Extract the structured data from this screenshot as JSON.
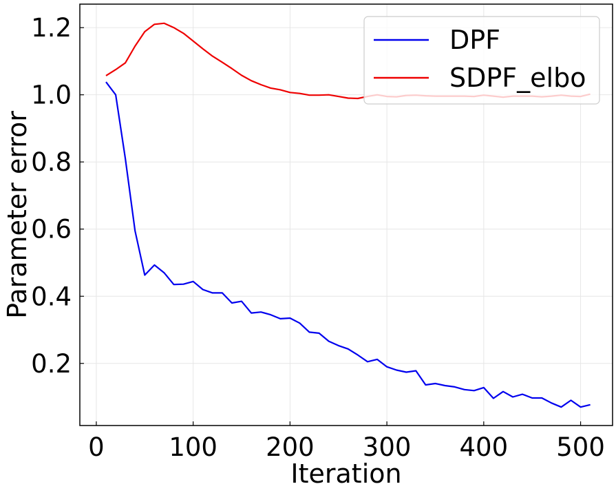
{
  "chart_data": {
    "type": "line",
    "title": "",
    "xlabel": "Iteration",
    "ylabel": "Parameter error",
    "xlim": [
      -17,
      533
    ],
    "ylim": [
      0.015,
      1.27
    ],
    "xticks": [
      0,
      100,
      200,
      300,
      400,
      500
    ],
    "xtick_labels": [
      "0",
      "100",
      "200",
      "300",
      "400",
      "500"
    ],
    "yticks": [
      0.2,
      0.4,
      0.6,
      0.8,
      1.0,
      1.2
    ],
    "ytick_labels": [
      "0.2",
      "0.4",
      "0.6",
      "0.8",
      "1.0",
      "1.2"
    ],
    "grid": true,
    "legend_position": "top-right",
    "x": [
      10,
      20,
      30,
      40,
      50,
      60,
      70,
      80,
      90,
      100,
      110,
      120,
      130,
      140,
      150,
      160,
      170,
      180,
      190,
      200,
      210,
      220,
      230,
      240,
      250,
      260,
      270,
      280,
      290,
      300,
      310,
      320,
      330,
      340,
      350,
      360,
      370,
      380,
      390,
      400,
      410,
      420,
      430,
      440,
      450,
      460,
      470,
      480,
      490,
      500,
      510
    ],
    "series": [
      {
        "name": "DPF",
        "color": "#0000ee",
        "values": [
          1.038,
          1.0,
          0.81,
          0.595,
          0.463,
          0.493,
          0.47,
          0.435,
          0.436,
          0.444,
          0.42,
          0.41,
          0.41,
          0.38,
          0.385,
          0.35,
          0.353,
          0.345,
          0.333,
          0.335,
          0.32,
          0.293,
          0.29,
          0.266,
          0.253,
          0.243,
          0.225,
          0.205,
          0.212,
          0.19,
          0.18,
          0.174,
          0.178,
          0.136,
          0.14,
          0.134,
          0.13,
          0.122,
          0.119,
          0.128,
          0.096,
          0.116,
          0.1,
          0.108,
          0.097,
          0.097,
          0.082,
          0.07,
          0.09,
          0.07,
          0.077
        ]
      },
      {
        "name": "SDPF_elbo",
        "color": "#ee0000",
        "values": [
          1.057,
          1.075,
          1.095,
          1.145,
          1.188,
          1.21,
          1.213,
          1.2,
          1.183,
          1.16,
          1.137,
          1.115,
          1.097,
          1.078,
          1.058,
          1.042,
          1.03,
          1.02,
          1.015,
          1.007,
          1.004,
          0.999,
          0.999,
          1.0,
          0.995,
          0.99,
          0.989,
          0.995,
          1.0,
          0.995,
          0.994,
          0.998,
          0.999,
          0.997,
          0.996,
          0.996,
          0.996,
          0.996,
          0.995,
          0.999,
          0.996,
          0.993,
          0.996,
          0.996,
          0.996,
          0.994,
          0.996,
          0.999,
          0.996,
          0.995,
          1.002
        ]
      }
    ]
  }
}
